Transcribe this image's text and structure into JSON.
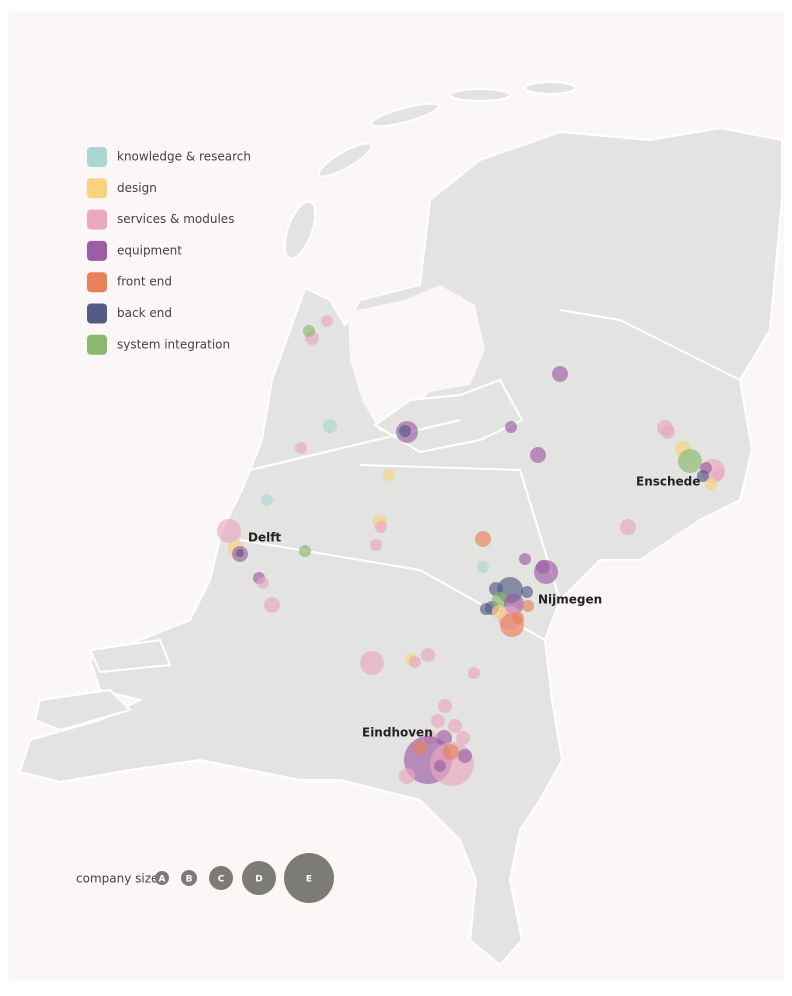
{
  "legend": {
    "items": [
      {
        "label": "knowledge & research",
        "color": "#a9d8d3"
      },
      {
        "label": "design",
        "color": "#f8d27c"
      },
      {
        "label": "services & modules",
        "color": "#eaa8bd"
      },
      {
        "label": "equipment",
        "color": "#9d5ca4"
      },
      {
        "label": "front end",
        "color": "#e8805c"
      },
      {
        "label": "back end",
        "color": "#525c84"
      },
      {
        "label": "system integration",
        "color": "#8ab86c"
      }
    ]
  },
  "cities": [
    {
      "label": "Delft"
    },
    {
      "label": "Enschede"
    },
    {
      "label": "Nijmegen"
    },
    {
      "label": "Eindhoven"
    }
  ],
  "size_legend": {
    "title": "company size",
    "sizes": [
      "A",
      "B",
      "C",
      "D",
      "E"
    ]
  }
}
